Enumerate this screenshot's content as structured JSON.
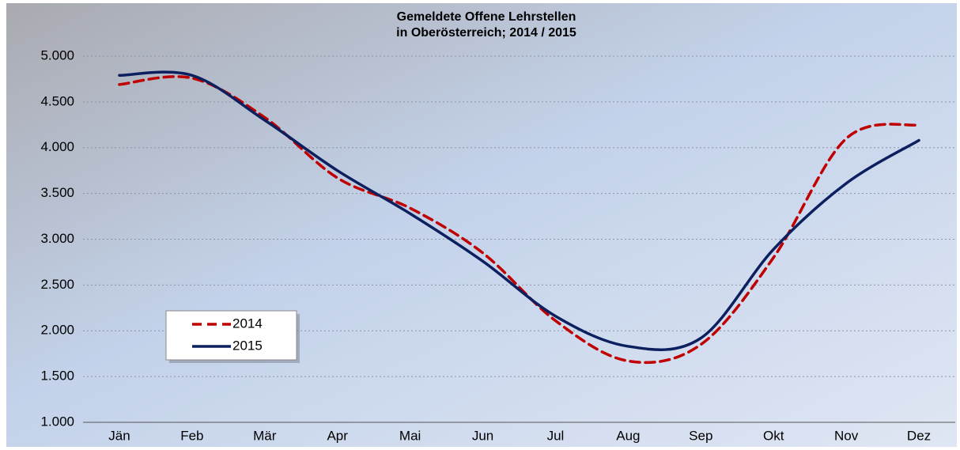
{
  "chart_data": {
    "type": "line",
    "title": "Gemeldete Offene Lehrstellen",
    "subtitle": "in Oberösterreich; 2014 / 2015",
    "categories": [
      "Jän",
      "Feb",
      "Mär",
      "Apr",
      "Mai",
      "Jun",
      "Jul",
      "Aug",
      "Sep",
      "Okt",
      "Nov",
      "Dez"
    ],
    "series": [
      {
        "name": "2014",
        "color": "#c00000",
        "dashed": true,
        "values": [
          4690,
          4760,
          4330,
          3670,
          3340,
          2850,
          2110,
          1670,
          1850,
          2800,
          4100,
          4250
        ]
      },
      {
        "name": "2015",
        "color": "#0c1f5e",
        "dashed": false,
        "values": [
          4790,
          4790,
          4300,
          3750,
          3280,
          2760,
          2160,
          1830,
          1920,
          2890,
          3610,
          4080
        ]
      }
    ],
    "ylim": [
      1000,
      5000
    ],
    "yticks": [
      {
        "value": 1000,
        "label": "1.000"
      },
      {
        "value": 1500,
        "label": "1.500"
      },
      {
        "value": 2000,
        "label": "2.000"
      },
      {
        "value": 2500,
        "label": "2.500"
      },
      {
        "value": 3000,
        "label": "3.000"
      },
      {
        "value": 3500,
        "label": "3.500"
      },
      {
        "value": 4000,
        "label": "4.000"
      },
      {
        "value": 4500,
        "label": "4.500"
      },
      {
        "value": 5000,
        "label": "5.000"
      }
    ],
    "grid": true,
    "smooth": true,
    "legend": "lower left"
  }
}
